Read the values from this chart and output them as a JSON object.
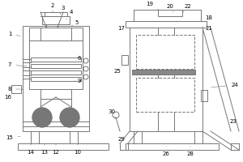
{
  "bg_color": "#ffffff",
  "line_color": "#777777",
  "line_width": 0.7,
  "fig_width": 3.0,
  "fig_height": 2.0,
  "dpi": 100
}
